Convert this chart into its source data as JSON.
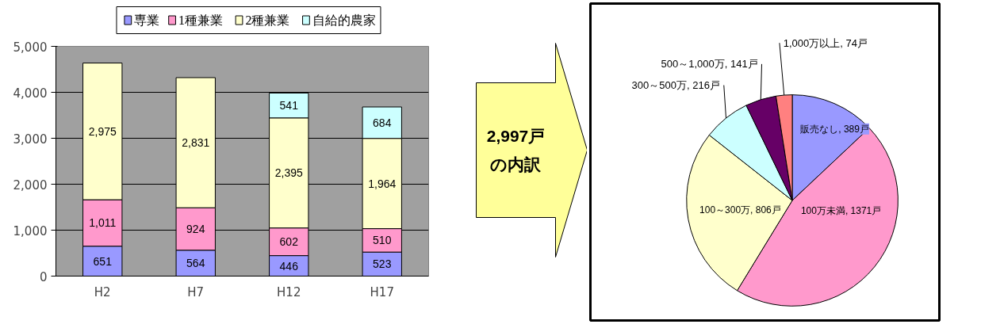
{
  "chart_data": [
    {
      "type": "bar",
      "stacked": true,
      "categories": [
        "H2",
        "H7",
        "H12",
        "H17"
      ],
      "series": [
        {
          "name": "専業",
          "color": "#9999ff",
          "values": [
            651,
            564,
            446,
            523
          ],
          "value_labels": [
            "651",
            "564",
            "446",
            "523"
          ]
        },
        {
          "name": "1種兼業",
          "color": "#ff99cc",
          "values": [
            1011,
            924,
            602,
            510
          ],
          "value_labels": [
            "1,011",
            "924",
            "602",
            "510"
          ]
        },
        {
          "name": "2種兼業",
          "color": "#ffffcc",
          "values": [
            2975,
            2831,
            2395,
            1964
          ],
          "value_labels": [
            "2,975",
            "2,831",
            "2,395",
            "1,964"
          ]
        },
        {
          "name": "自給的農家",
          "color": "#ccffff",
          "values": [
            null,
            null,
            541,
            684
          ],
          "value_labels": [
            null,
            null,
            "541",
            "684"
          ]
        }
      ],
      "ylim": [
        0,
        5000
      ],
      "yticks": [
        0,
        {
          "value": 1000,
          "label": "1,000"
        },
        {
          "value": 2000,
          "label": "2,000"
        },
        {
          "value": 3000,
          "label": "3,000"
        },
        {
          "value": 4000,
          "label": "4,000"
        },
        {
          "value": 5000,
          "label": "5,000"
        }
      ],
      "grid": "y",
      "legend": "top"
    },
    {
      "type": "pie",
      "categories": [
        "販売なし",
        "100万未満",
        "100～300万",
        "300～500万",
        "500～1,000万",
        "1,000万以上"
      ],
      "values": [
        389,
        1371,
        806,
        216,
        141,
        74
      ],
      "value_labels": [
        "389戸",
        "1371戸",
        "806戸",
        "216戸",
        "141戸",
        "74戸"
      ],
      "colors": [
        "#9999ff",
        "#ff99cc",
        "#ffffcc",
        "#ccffff",
        "#660066",
        "#ff8080"
      ],
      "annotations": [
        "2,997戸の内訳"
      ]
    }
  ]
}
